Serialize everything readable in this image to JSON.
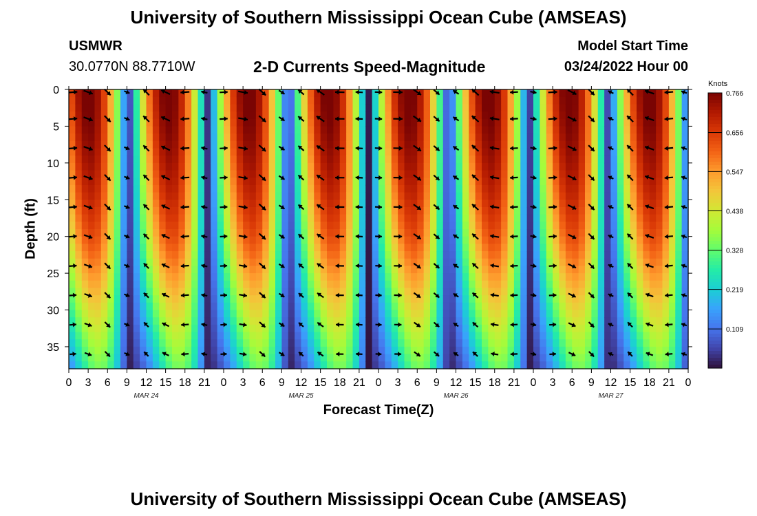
{
  "header": {
    "title": "University of Southern Mississippi Ocean Cube (AMSEAS)",
    "station": "USMWR",
    "coords": "30.0770N  88.7710W",
    "subtitle": "2-D Currents Speed-Magnitude",
    "model_start_label": "Model Start Time",
    "model_start_value": "03/24/2022 Hour 00"
  },
  "footer": {
    "title": "University of Southern Mississippi Ocean Cube (AMSEAS)"
  },
  "chart_data": {
    "type": "heatmap",
    "title": "2-D Currents Speed-Magnitude",
    "xlabel": "Forecast Time(Z)",
    "ylabel": "Depth (ft)",
    "x_range_hours": [
      0,
      96
    ],
    "y_range_ft": [
      0,
      38
    ],
    "y_ticks": [
      0,
      5,
      10,
      15,
      20,
      25,
      30,
      35
    ],
    "x_tick_labels": [
      "0",
      "3",
      "6",
      "9",
      "12",
      "15",
      "18",
      "21",
      "0",
      "3",
      "6",
      "9",
      "12",
      "15",
      "18",
      "21",
      "0",
      "3",
      "6",
      "9",
      "12",
      "15",
      "18",
      "21",
      "0",
      "3",
      "6",
      "9",
      "12",
      "15",
      "18",
      "21",
      "0"
    ],
    "date_labels": [
      {
        "label": "MAR 24",
        "hour": 12
      },
      {
        "label": "MAR 25",
        "hour": 36
      },
      {
        "label": "MAR 26",
        "hour": 60
      },
      {
        "label": "MAR 27",
        "hour": 84
      }
    ],
    "colorbar": {
      "unit": "Knots",
      "min": 0.0,
      "max": 0.766,
      "ticks": [
        "0.766",
        "0.656",
        "0.547",
        "0.438",
        "0.328",
        "0.219",
        "0.109"
      ],
      "colors": [
        "#30123b",
        "#4145ab",
        "#4675ed",
        "#39a2fc",
        "#1bcfd4",
        "#24eca6",
        "#61fc6c",
        "#a4fc3b",
        "#d1e834",
        "#f3c63a",
        "#fe9b2d",
        "#f36315",
        "#d93806",
        "#b11901",
        "#7a0403"
      ]
    },
    "speed_peaks_hour": [
      3,
      15,
      27,
      39,
      51,
      63,
      75,
      87
    ],
    "speed_minimum_hours": [
      8.5,
      21,
      33,
      46,
      57,
      70,
      82,
      95
    ],
    "max_speed_knots": 0.766,
    "vector_grid": {
      "hours": [
        0,
        3,
        6,
        9,
        12,
        15,
        18,
        21,
        24,
        27,
        30,
        33,
        36,
        39,
        42,
        45,
        48,
        51,
        54,
        57,
        60,
        63,
        66,
        69,
        72,
        75,
        78,
        81,
        84,
        87,
        90,
        93,
        96
      ],
      "depths_ft": [
        0,
        4,
        8,
        12,
        16,
        20,
        24,
        28,
        32,
        36
      ]
    }
  }
}
